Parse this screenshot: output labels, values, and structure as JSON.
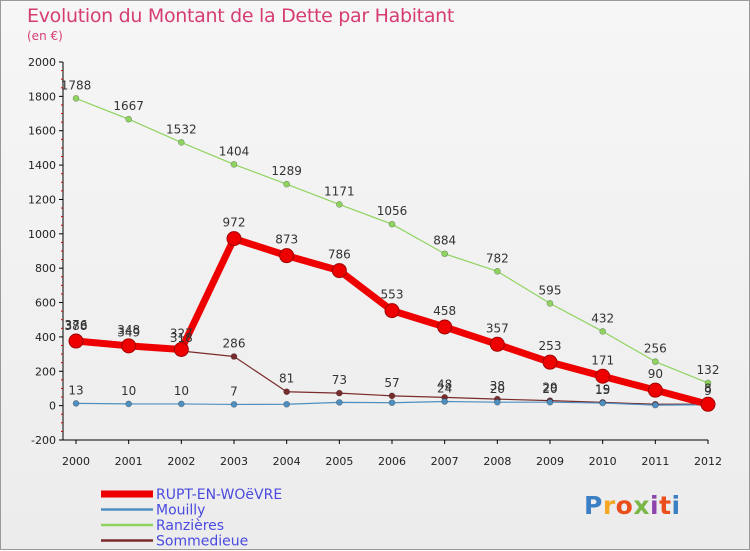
{
  "title": "Evolution du Montant de la Dette par Habitant",
  "subtitle": "(en €)",
  "logo": {
    "text": "Proxiti",
    "colors": [
      "#3b7fc4",
      "#f5a623",
      "#e94e1b",
      "#7ab648",
      "#8e44ad",
      "#e94e1b",
      "#3b7fc4"
    ]
  },
  "colors": {
    "title": "#d63c74",
    "legend_text": "#4a4ae0",
    "axis": "#000000",
    "grid_tick": "#cc0000"
  },
  "chart_data": {
    "type": "line",
    "title": "Evolution du Montant de la Dette par Habitant",
    "subtitle": "(en €)",
    "x": [
      "2000",
      "2001",
      "2002",
      "2003",
      "2004",
      "2005",
      "2006",
      "2007",
      "2008",
      "2009",
      "2010",
      "2011",
      "2012"
    ],
    "ylim": [
      -200,
      2000
    ],
    "yticks": [
      -200,
      0,
      200,
      400,
      600,
      800,
      1000,
      1200,
      1400,
      1600,
      1800,
      2000
    ],
    "legend_position": "bottom-left",
    "series": [
      {
        "name": "RUPT-EN-WOëVRE",
        "color": "#ee0000",
        "width": 7,
        "marker": 7,
        "values": [
          376,
          348,
          327,
          972,
          873,
          786,
          553,
          458,
          357,
          253,
          171,
          90,
          8
        ],
        "labels": [
          "376",
          "348",
          "327",
          "972",
          "873",
          "786",
          "553",
          "458",
          "357",
          "253",
          "171",
          "90",
          "8"
        ]
      },
      {
        "name": "Mouilly",
        "color": "#4f8fc0",
        "width": 1.2,
        "marker": 3,
        "values": [
          13,
          10,
          10,
          7,
          8,
          19,
          17,
          24,
          20,
          20,
          15,
          3,
          5
        ],
        "labels": [
          "13",
          "10",
          "10",
          "7",
          "",
          "",
          "",
          "24",
          "20",
          "20",
          "15",
          "",
          ""
        ]
      },
      {
        "name": "Ranzières",
        "color": "#8fd460",
        "width": 1.2,
        "marker": 3,
        "values": [
          1788,
          1667,
          1532,
          1404,
          1289,
          1171,
          1056,
          884,
          782,
          595,
          432,
          256,
          132
        ],
        "labels": [
          "1788",
          "1667",
          "1532",
          "1404",
          "1289",
          "1171",
          "1056",
          "884",
          "782",
          "595",
          "432",
          "256",
          "132"
        ]
      },
      {
        "name": "Sommedieue",
        "color": "#7a2b2b",
        "width": 1.2,
        "marker": 3,
        "values": [
          388,
          349,
          318,
          286,
          81,
          73,
          57,
          48,
          38,
          29,
          19,
          8,
          9
        ],
        "labels": [
          "388",
          "349",
          "318",
          "286",
          "81",
          "73",
          "57",
          "48",
          "38",
          "29",
          "19",
          "",
          "9"
        ]
      }
    ]
  }
}
